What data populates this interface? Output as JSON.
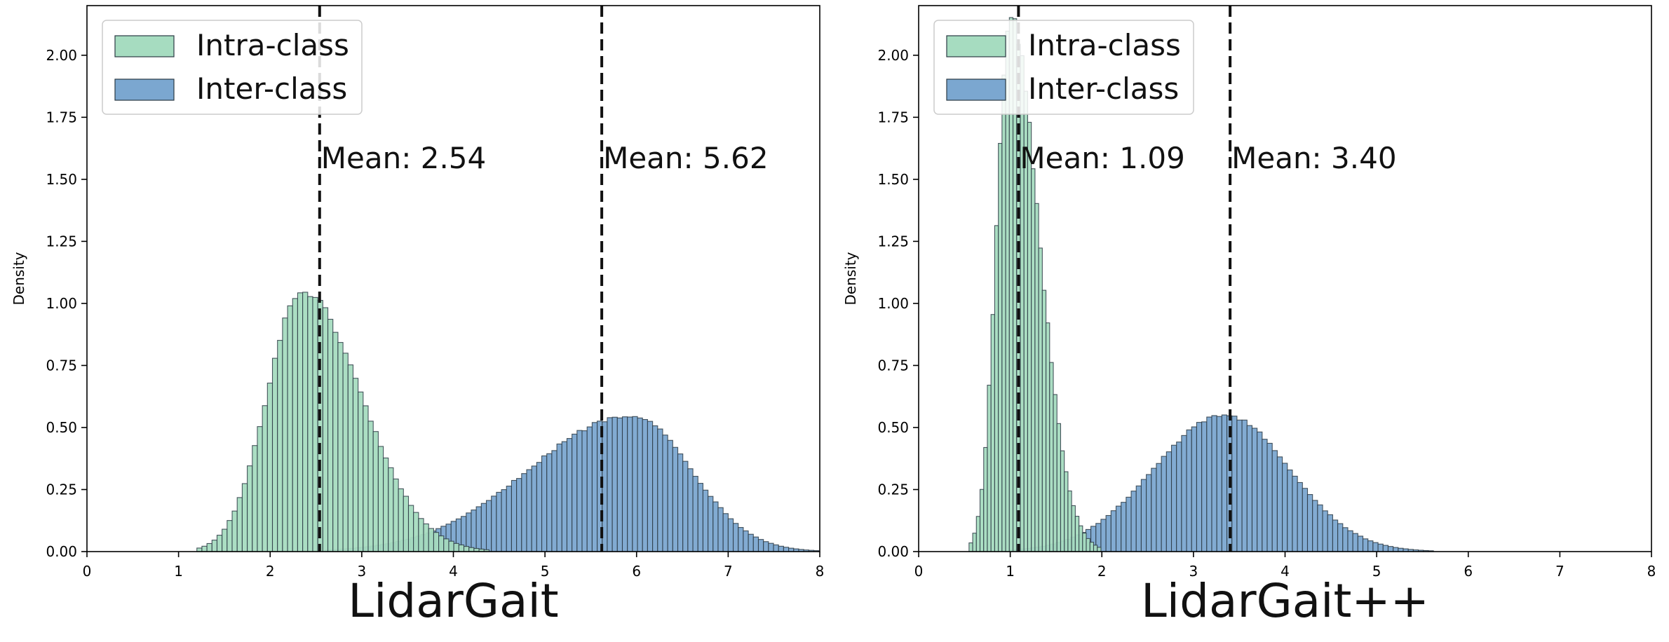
{
  "chart_data": [
    {
      "type": "histogram",
      "title": "LidarGait",
      "ylabel": "Density",
      "xlabel": "",
      "xlim": [
        0,
        8
      ],
      "ylim": [
        0,
        2.2
      ],
      "xticks": [
        0,
        1,
        2,
        3,
        4,
        5,
        6,
        7,
        8
      ],
      "yticks": [
        0.0,
        0.25,
        0.5,
        0.75,
        1.0,
        1.25,
        1.5,
        1.75,
        2.0
      ],
      "legend": {
        "placement": "upper-left",
        "entries": [
          "Intra-class",
          "Inter-class"
        ]
      },
      "series": [
        {
          "name": "Intra-class",
          "color": "#a6dcc0",
          "distribution": {
            "mean": 2.54,
            "mode": 2.35,
            "peak_density": 1.05,
            "range": [
              1.2,
              4.4
            ]
          }
        },
        {
          "name": "Inter-class",
          "color": "#7ba7d0",
          "distribution": {
            "mean": 5.62,
            "mode": 5.95,
            "peak_density": 0.55,
            "range": [
              2.6,
              8.0
            ]
          }
        }
      ],
      "annotations": [
        {
          "x": 2.54,
          "label": "Mean: 2.54"
        },
        {
          "x": 5.62,
          "label": "Mean: 5.62"
        }
      ]
    },
    {
      "type": "histogram",
      "title": "LidarGait++",
      "ylabel": "Density",
      "xlabel": "",
      "xlim": [
        0,
        8
      ],
      "ylim": [
        0,
        2.2
      ],
      "xticks": [
        0,
        1,
        2,
        3,
        4,
        5,
        6,
        7,
        8
      ],
      "yticks": [
        0.0,
        0.25,
        0.5,
        0.75,
        1.0,
        1.25,
        1.5,
        1.75,
        2.0
      ],
      "legend": {
        "placement": "upper-left",
        "entries": [
          "Intra-class",
          "Inter-class"
        ]
      },
      "series": [
        {
          "name": "Intra-class",
          "color": "#a6dcc0",
          "distribution": {
            "mean": 1.09,
            "mode": 1.0,
            "peak_density": 2.15,
            "range": [
              0.55,
              2.0
            ]
          }
        },
        {
          "name": "Inter-class",
          "color": "#7ba7d0",
          "distribution": {
            "mean": 3.4,
            "mode": 3.35,
            "peak_density": 0.55,
            "range": [
              1.0,
              5.6
            ]
          }
        }
      ],
      "annotations": [
        {
          "x": 1.09,
          "label": "Mean: 1.09"
        },
        {
          "x": 3.4,
          "label": "Mean: 3.40"
        }
      ]
    }
  ]
}
